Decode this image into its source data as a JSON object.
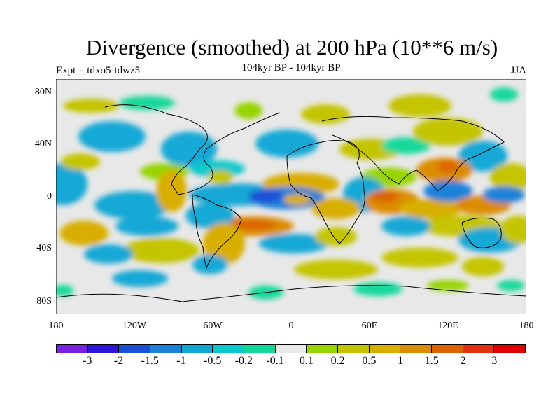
{
  "header": {
    "title": "Divergence (smoothed) at 200 hPa (10**6 m/s)",
    "experiment": "Expt = tdxo5-tdwz5",
    "subtitle": "104kyr BP - 104kyr BP",
    "season": "JJA"
  },
  "axes": {
    "lat_labels": [
      "80N",
      "40N",
      "0",
      "40S",
      "80S"
    ],
    "lon_labels": [
      "180",
      "120W",
      "60W",
      "0",
      "60E",
      "120E",
      "180"
    ]
  },
  "colorbar": {
    "colors": [
      "#7b1fe0",
      "#2d16d8",
      "#1a50d8",
      "#1c82d8",
      "#12a8d6",
      "#0ac8cc",
      "#14d89a",
      "#e8e8e8",
      "#96d400",
      "#c4c400",
      "#d8ae00",
      "#dc8c00",
      "#dc6400",
      "#e03010",
      "#e00000"
    ],
    "labels": [
      "-3",
      "-2",
      "-1.5",
      "-1",
      "-0.5",
      "-0.2",
      "-0.1",
      "0.1",
      "0.2",
      "0.5",
      "1",
      "1.5",
      "2",
      "3"
    ]
  }
}
